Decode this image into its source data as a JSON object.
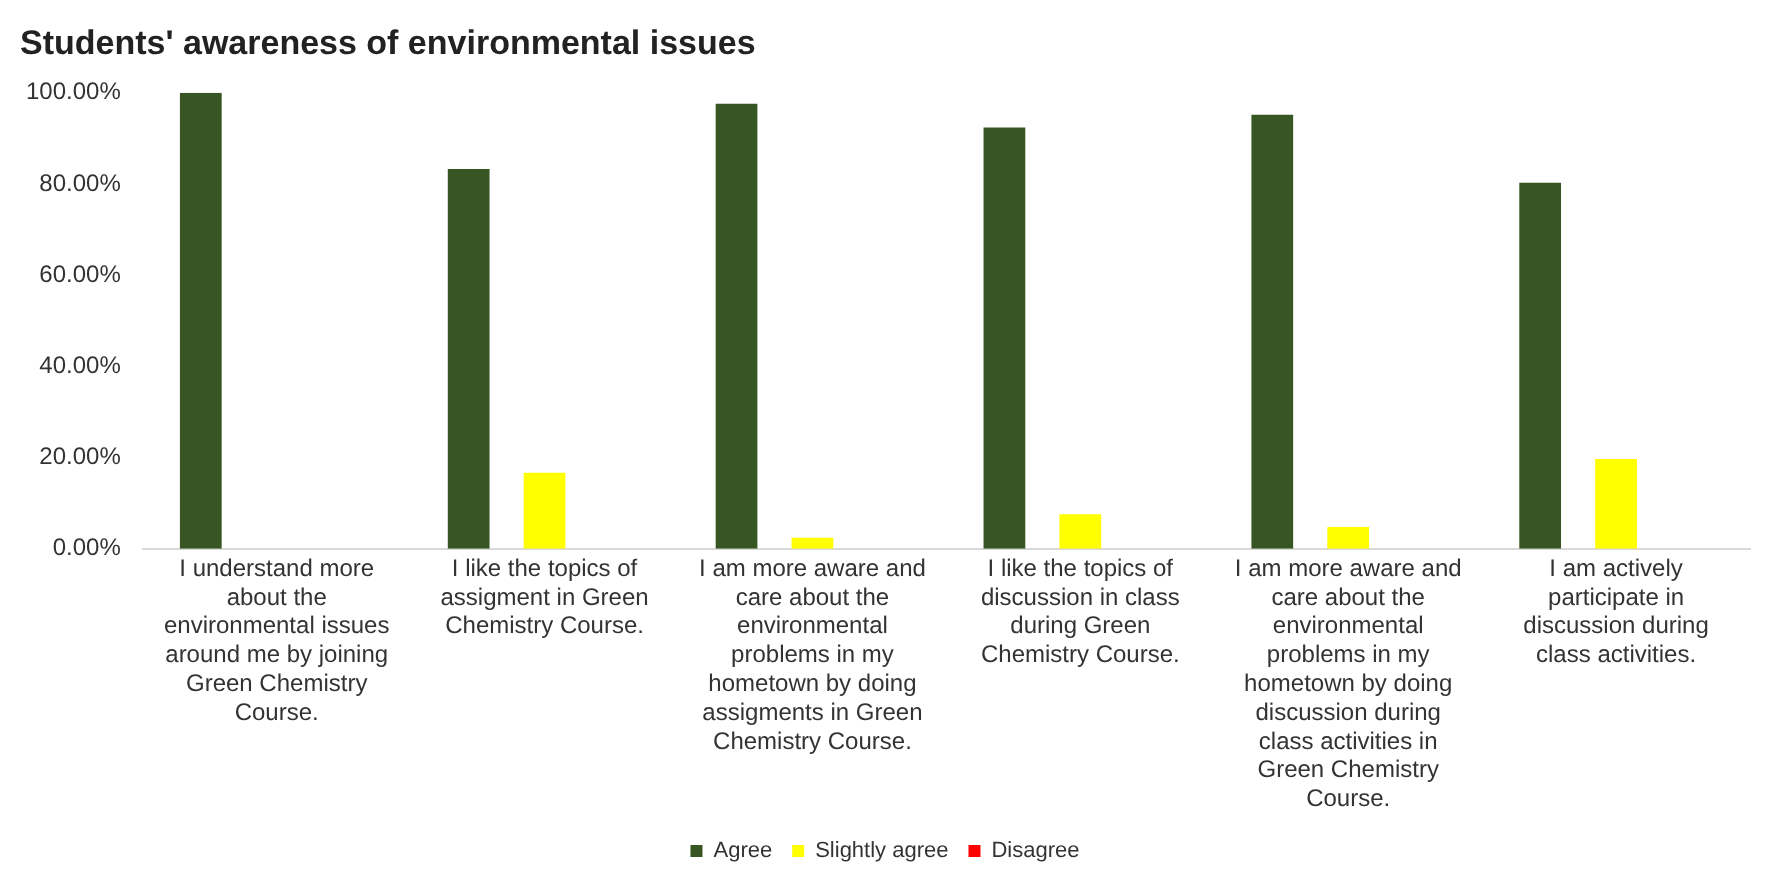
{
  "chart_data": {
    "type": "bar",
    "title": "Students' awareness of environmental issues",
    "categories": [
      "I understand more about the environmental issues around me by joining Green Chemistry Course.",
      "I like the topics of assigment in Green Chemistry Course.",
      "I am more aware and care about the environmental problems in my hometown by doing assigments in Green Chemistry Course.",
      "I like the topics of discussion in class during Green Chemistry Course.",
      "I am more aware and care about the environmental problems in my hometown by doing discussion during class activities in Green Chemistry Course.",
      "I am actively participate in discussion during class activities."
    ],
    "series": [
      {
        "name": "Agree",
        "color": "#375623",
        "values": [
          100,
          83.3,
          97.6,
          92.4,
          95.2,
          80.3
        ]
      },
      {
        "name": "Slightly agree",
        "color": "#ffff00",
        "values": [
          0,
          16.7,
          2.4,
          7.6,
          4.8,
          19.7
        ]
      },
      {
        "name": "Disagree",
        "color": "#ff0000",
        "values": [
          0,
          0,
          0,
          0,
          0,
          0
        ]
      }
    ],
    "ylim": [
      0,
      100
    ],
    "yticks": [
      {
        "value": 0,
        "label": "0.00%"
      },
      {
        "value": 20,
        "label": "20.00%"
      },
      {
        "value": 40,
        "label": "40.00%"
      },
      {
        "value": 60,
        "label": "60.00%"
      },
      {
        "value": 80,
        "label": "80.00%"
      },
      {
        "value": 100,
        "label": "100.00%"
      }
    ],
    "grid": false,
    "legend": "bottom"
  }
}
